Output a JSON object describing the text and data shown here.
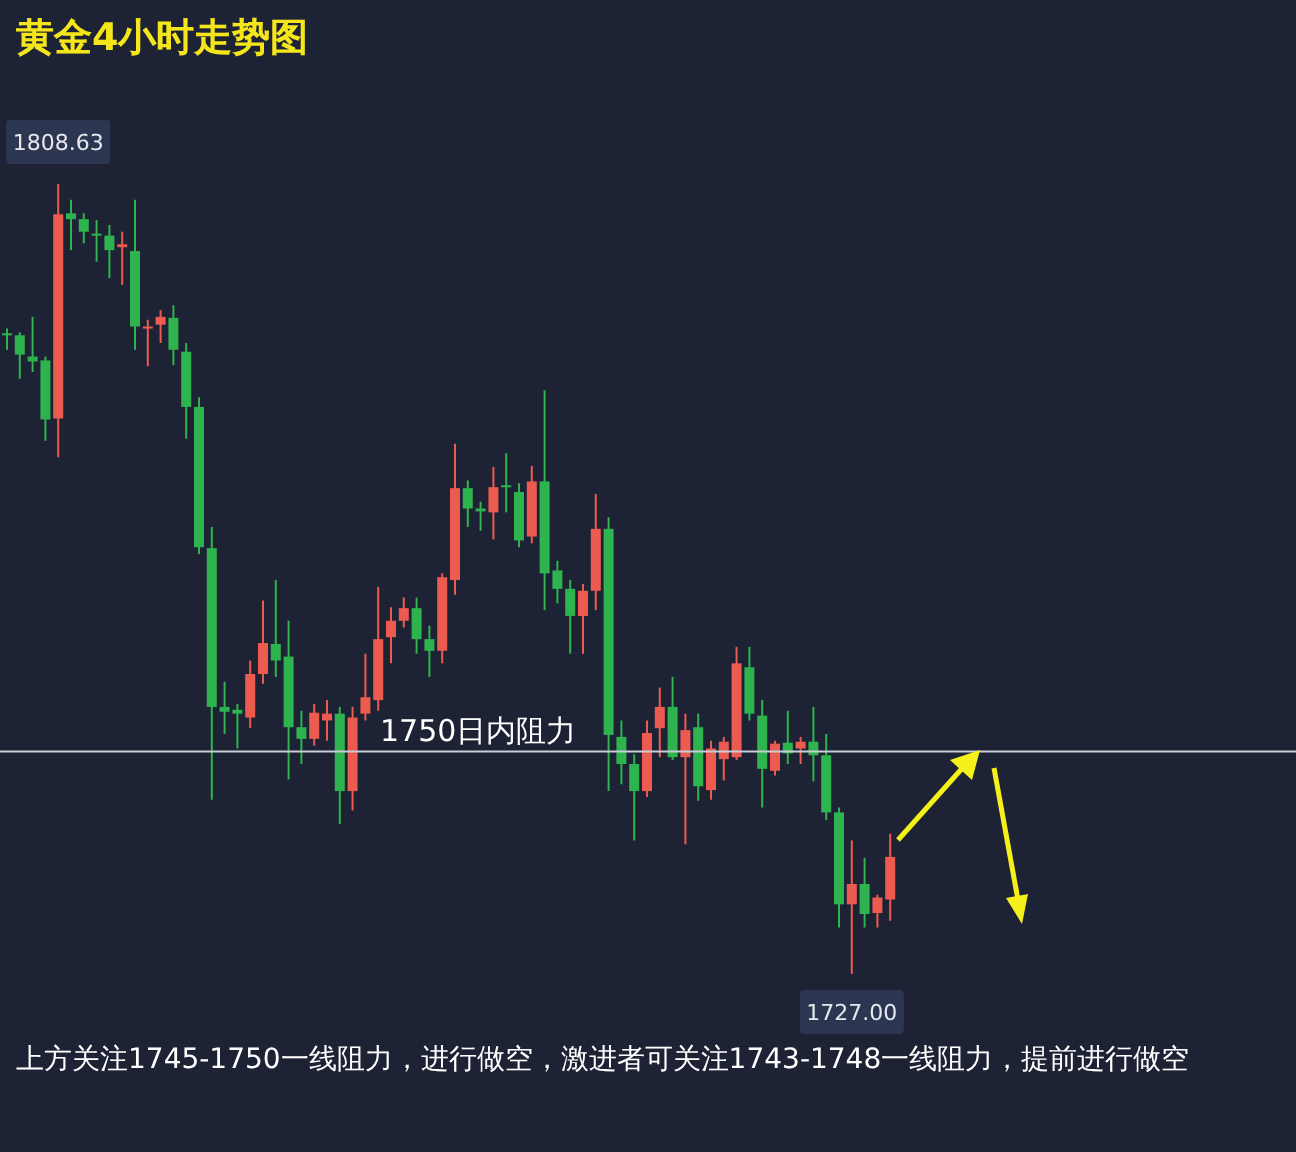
{
  "chart_data": {
    "type": "candlestick",
    "title": "黄金4小时走势图",
    "categories": [
      null,
      null,
      null,
      null,
      null,
      null,
      null,
      null,
      null,
      null,
      null,
      null,
      null,
      null,
      null,
      null,
      null,
      null,
      null,
      null,
      null,
      null,
      null,
      null,
      null,
      null,
      null,
      null,
      null,
      null,
      null,
      null,
      null,
      null,
      null,
      null,
      null,
      null,
      null,
      null,
      null,
      null,
      null,
      null,
      null,
      null,
      null,
      null,
      null,
      null,
      null,
      null,
      null,
      null,
      null,
      null,
      null,
      null,
      null,
      null,
      null,
      null,
      null,
      null,
      null,
      null,
      null,
      null,
      null,
      null
    ],
    "ohlc": [
      [
        1793.2,
        1793.7,
        1791.5,
        1793.0
      ],
      [
        1793.0,
        1793.3,
        1788.5,
        1791.0
      ],
      [
        1790.8,
        1794.9,
        1789.2,
        1790.3
      ],
      [
        1790.4,
        1790.8,
        1782.1,
        1784.3
      ],
      [
        1784.4,
        1808.63,
        1780.4,
        1805.5
      ],
      [
        1805.6,
        1807.0,
        1801.8,
        1805.0
      ],
      [
        1805.0,
        1805.6,
        1802.5,
        1803.7
      ],
      [
        1803.5,
        1804.9,
        1800.6,
        1803.4
      ],
      [
        1803.3,
        1804.4,
        1798.9,
        1801.8
      ],
      [
        1802.1,
        1803.7,
        1798.2,
        1802.4
      ],
      [
        1801.7,
        1807.0,
        1791.5,
        1793.9
      ],
      [
        1793.7,
        1794.6,
        1789.8,
        1793.9
      ],
      [
        1794.1,
        1795.6,
        1792.2,
        1794.9
      ],
      [
        1794.8,
        1796.1,
        1789.9,
        1791.5
      ],
      [
        1791.3,
        1792.2,
        1782.3,
        1785.6
      ],
      [
        1785.6,
        1786.6,
        1770.4,
        1771.1
      ],
      [
        1771.0,
        1773.2,
        1745.0,
        1754.6
      ],
      [
        1754.6,
        1757.2,
        1751.8,
        1754.1
      ],
      [
        1754.3,
        1754.9,
        1750.3,
        1753.9
      ],
      [
        1753.5,
        1759.4,
        1752.4,
        1758.0
      ],
      [
        1758.0,
        1765.6,
        1757.0,
        1761.2
      ],
      [
        1761.1,
        1767.7,
        1757.7,
        1759.4
      ],
      [
        1759.8,
        1763.5,
        1747.1,
        1752.5
      ],
      [
        1752.5,
        1754.2,
        1748.7,
        1751.3
      ],
      [
        1751.3,
        1754.9,
        1750.6,
        1754.0
      ],
      [
        1753.2,
        1755.3,
        1751.1,
        1753.9
      ],
      [
        1753.9,
        1754.6,
        1742.5,
        1745.9
      ],
      [
        1745.9,
        1754.6,
        1743.9,
        1753.5
      ],
      [
        1753.9,
        1760.1,
        1753.2,
        1755.6
      ],
      [
        1755.3,
        1767.0,
        1754.2,
        1761.6
      ],
      [
        1761.8,
        1764.9,
        1759.1,
        1763.5
      ],
      [
        1763.5,
        1765.9,
        1762.8,
        1764.8
      ],
      [
        1764.8,
        1765.9,
        1760.1,
        1761.6
      ],
      [
        1761.6,
        1763.0,
        1757.7,
        1760.4
      ],
      [
        1760.4,
        1768.4,
        1759.1,
        1768.0
      ],
      [
        1767.7,
        1781.8,
        1766.2,
        1777.2
      ],
      [
        1777.2,
        1778.0,
        1773.2,
        1775.1
      ],
      [
        1775.1,
        1775.8,
        1772.8,
        1774.8
      ],
      [
        1774.7,
        1779.4,
        1771.9,
        1777.3
      ],
      [
        1777.5,
        1780.8,
        1774.7,
        1777.3
      ],
      [
        1776.8,
        1777.7,
        1771.1,
        1771.8
      ],
      [
        1772.2,
        1779.5,
        1771.5,
        1777.9
      ],
      [
        1777.9,
        1787.3,
        1764.6,
        1768.4
      ],
      [
        1768.7,
        1769.7,
        1765.3,
        1766.8
      ],
      [
        1766.8,
        1767.7,
        1760.1,
        1764.0
      ],
      [
        1764.0,
        1767.3,
        1760.1,
        1766.6
      ],
      [
        1766.6,
        1776.6,
        1764.6,
        1773.0
      ],
      [
        1773.0,
        1774.2,
        1745.9,
        1751.7
      ],
      [
        1751.5,
        1753.2,
        1746.6,
        1748.7
      ],
      [
        1748.7,
        1749.7,
        1740.8,
        1745.9
      ],
      [
        1745.9,
        1753.2,
        1745.3,
        1751.9
      ],
      [
        1752.4,
        1756.6,
        1749.4,
        1754.6
      ],
      [
        1754.6,
        1757.7,
        1749.1,
        1749.4
      ],
      [
        1749.4,
        1753.9,
        1740.4,
        1752.2
      ],
      [
        1752.5,
        1753.9,
        1744.9,
        1746.4
      ],
      [
        1746.0,
        1751.1,
        1745.0,
        1750.3
      ],
      [
        1749.2,
        1751.5,
        1747.0,
        1751.0
      ],
      [
        1749.4,
        1760.8,
        1749.1,
        1759.1
      ],
      [
        1758.7,
        1760.8,
        1753.2,
        1753.9
      ],
      [
        1753.7,
        1755.3,
        1744.2,
        1748.2
      ],
      [
        1748.0,
        1751.1,
        1747.5,
        1750.8
      ],
      [
        1750.9,
        1754.2,
        1748.7,
        1749.8
      ],
      [
        1750.3,
        1751.5,
        1748.7,
        1751.0
      ],
      [
        1751.0,
        1754.6,
        1746.9,
        1749.6
      ],
      [
        1749.6,
        1751.8,
        1742.9,
        1743.7
      ],
      [
        1743.7,
        1744.2,
        1731.8,
        1734.2
      ],
      [
        1734.2,
        1740.8,
        1727.0,
        1736.3
      ],
      [
        1736.3,
        1739.0,
        1731.8,
        1733.2
      ],
      [
        1733.3,
        1735.2,
        1731.8,
        1734.9
      ],
      [
        1734.7,
        1741.5,
        1732.5,
        1739.1
      ]
    ],
    "colors": [
      "#2fb34f",
      "#2fb34f",
      "#2fb34f",
      "#2fb34f",
      "#ec5b4f",
      "#2fb34f",
      "#2fb34f",
      "#2fb34f",
      "#2fb34f",
      "#ec5b4f",
      "#2fb34f",
      "#ec5b4f",
      "#ec5b4f",
      "#2fb34f",
      "#2fb34f",
      "#2fb34f",
      "#2fb34f",
      "#2fb34f",
      "#2fb34f",
      "#ec5b4f",
      "#ec5b4f",
      "#2fb34f",
      "#2fb34f",
      "#2fb34f",
      "#ec5b4f",
      "#ec5b4f",
      "#2fb34f",
      "#ec5b4f",
      "#ec5b4f",
      "#ec5b4f",
      "#ec5b4f",
      "#ec5b4f",
      "#2fb34f",
      "#2fb34f",
      "#ec5b4f",
      "#ec5b4f",
      "#2fb34f",
      "#2fb34f",
      "#ec5b4f",
      "#2fb34f",
      "#2fb34f",
      "#ec5b4f",
      "#2fb34f",
      "#2fb34f",
      "#2fb34f",
      "#ec5b4f",
      "#ec5b4f",
      "#2fb34f",
      "#2fb34f",
      "#2fb34f",
      "#ec5b4f",
      "#ec5b4f",
      "#2fb34f",
      "#ec5b4f",
      "#2fb34f",
      "#ec5b4f",
      "#ec5b4f",
      "#ec5b4f",
      "#2fb34f",
      "#2fb34f",
      "#ec5b4f",
      "#2fb34f",
      "#ec5b4f",
      "#2fb34f",
      "#2fb34f",
      "#2fb34f",
      "#ec5b4f",
      "#2fb34f",
      "#ec5b4f",
      "#ec5b4f"
    ],
    "ref_lines": [
      {
        "axis": "y",
        "value": 1750,
        "label": "1750日内阻力",
        "color": "#c9cdd6"
      }
    ],
    "tick_labels": false,
    "annotations": [
      {
        "text": "1808.63",
        "y": 1808.63
      },
      {
        "text": "1727.00",
        "y": 1727.0
      },
      "上方关注1745-1750一线阻力，进行做空，激进者可关注1743-1748一线阻力，提前进行做空"
    ]
  }
}
